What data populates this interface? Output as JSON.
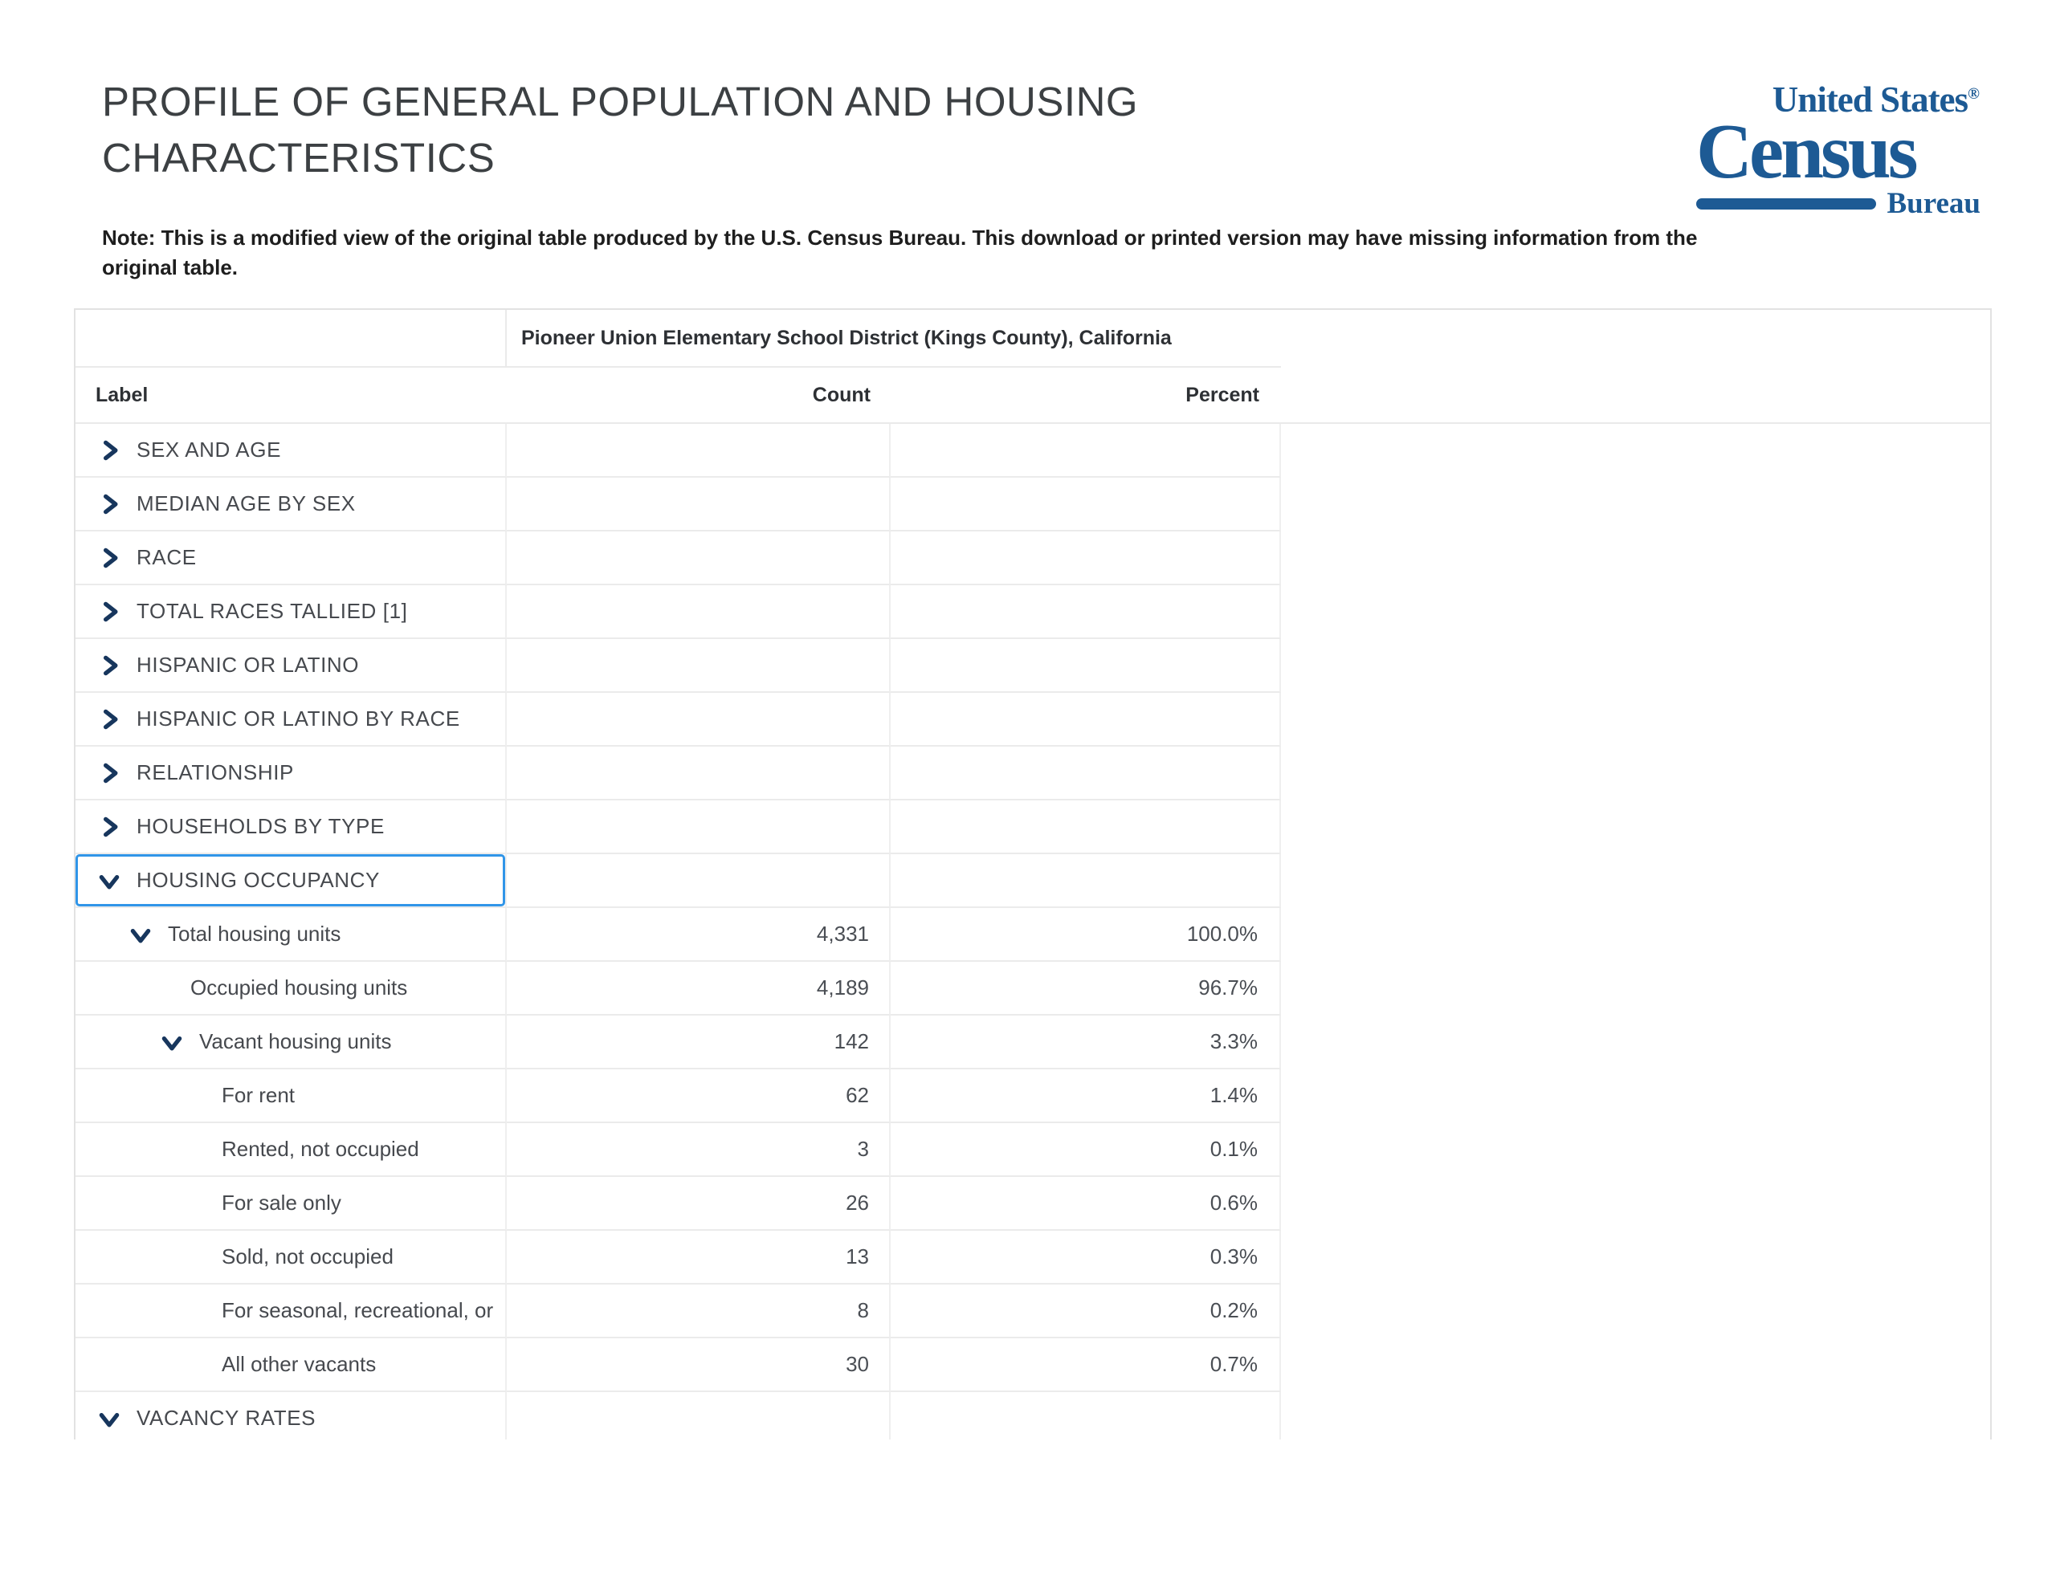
{
  "header": {
    "title": "PROFILE OF GENERAL POPULATION AND HOUSING CHARACTERISTICS",
    "note": "Note: This is a modified view of the original table produced by the U.S. Census Bureau. This download or printed version may have missing information from the original table."
  },
  "logo": {
    "line1": "United States",
    "registered": "®",
    "line2": "Census",
    "line3": "Bureau",
    "color": "#1d5a94"
  },
  "colors": {
    "chevron_navy": "#17365d",
    "focus_blue": "#3095e8",
    "border_gray": "#ebebeb"
  },
  "table": {
    "region_header": "Pioneer Union Elementary School District (Kings County), California",
    "columns": [
      "Label",
      "Count",
      "Percent"
    ],
    "rows": [
      {
        "label": "SEX AND AGE",
        "level": 0,
        "chevron": "right",
        "count": "",
        "percent": ""
      },
      {
        "label": "MEDIAN AGE BY SEX",
        "level": 0,
        "chevron": "right",
        "count": "",
        "percent": ""
      },
      {
        "label": "RACE",
        "level": 0,
        "chevron": "right",
        "count": "",
        "percent": ""
      },
      {
        "label": "TOTAL RACES TALLIED [1]",
        "level": 0,
        "chevron": "right",
        "count": "",
        "percent": ""
      },
      {
        "label": "HISPANIC OR LATINO",
        "level": 0,
        "chevron": "right",
        "count": "",
        "percent": ""
      },
      {
        "label": "HISPANIC OR LATINO BY RACE",
        "level": 0,
        "chevron": "right",
        "count": "",
        "percent": ""
      },
      {
        "label": "RELATIONSHIP",
        "level": 0,
        "chevron": "right",
        "count": "",
        "percent": ""
      },
      {
        "label": "HOUSEHOLDS BY TYPE",
        "level": 0,
        "chevron": "right",
        "count": "",
        "percent": ""
      },
      {
        "label": "HOUSING OCCUPANCY",
        "level": 0,
        "chevron": "down",
        "count": "",
        "percent": "",
        "focused": true
      },
      {
        "label": "Total housing units",
        "level": 1,
        "chevron": "down",
        "count": "4,331",
        "percent": "100.0%"
      },
      {
        "label": "Occupied housing units",
        "level": 2,
        "chevron": null,
        "count": "4,189",
        "percent": "96.7%"
      },
      {
        "label": "Vacant housing units",
        "level": 2,
        "chevron": "down",
        "count": "142",
        "percent": "3.3%"
      },
      {
        "label": "For rent",
        "level": 3,
        "chevron": null,
        "count": "62",
        "percent": "1.4%"
      },
      {
        "label": "Rented, not occupied",
        "level": 3,
        "chevron": null,
        "count": "3",
        "percent": "0.1%"
      },
      {
        "label": "For sale only",
        "level": 3,
        "chevron": null,
        "count": "26",
        "percent": "0.6%"
      },
      {
        "label": "Sold, not occupied",
        "level": 3,
        "chevron": null,
        "count": "13",
        "percent": "0.3%"
      },
      {
        "label": "For seasonal, recreational, or",
        "level": 3,
        "chevron": null,
        "count": "8",
        "percent": "0.2%"
      },
      {
        "label": "All other vacants",
        "level": 3,
        "chevron": null,
        "count": "30",
        "percent": "0.7%"
      },
      {
        "label": "VACANCY RATES",
        "level": 0,
        "chevron": "down",
        "count": "",
        "percent": ""
      }
    ]
  }
}
